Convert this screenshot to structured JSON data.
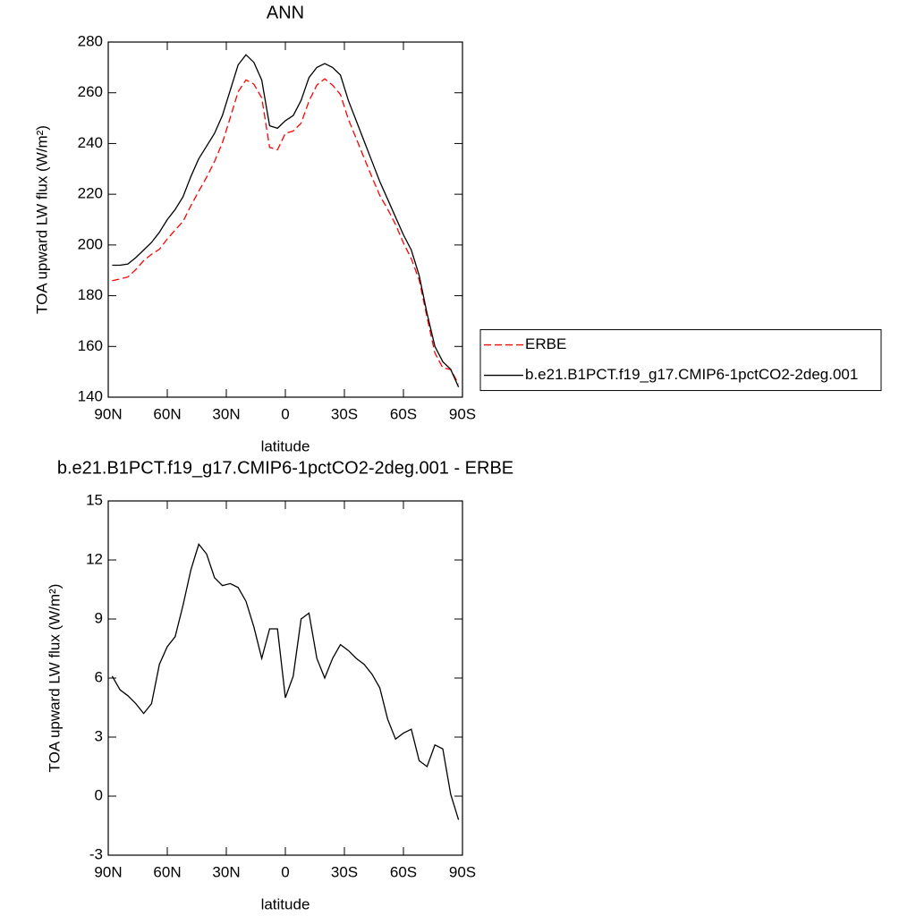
{
  "chart_data": [
    {
      "type": "line",
      "title": "ANN",
      "xlabel": "latitude",
      "ylabel": "TOA upward LW flux (W/m²)",
      "x": [
        88,
        84,
        80,
        76,
        72,
        68,
        64,
        60,
        56,
        52,
        48,
        44,
        40,
        36,
        32,
        28,
        24,
        20,
        16,
        12,
        8,
        4,
        0,
        -4,
        -8,
        -12,
        -16,
        -20,
        -24,
        -28,
        -32,
        -36,
        -40,
        -44,
        -48,
        -52,
        -56,
        -60,
        -64,
        -68,
        -72,
        -76,
        -80,
        -84,
        -88
      ],
      "series": [
        {
          "name": "ERBE",
          "color": "#ff0000",
          "dash": true,
          "values": [
            185.9,
            186.6,
            187.4,
            190.3,
            193.8,
            196.3,
            198.3,
            202.4,
            205.9,
            209.3,
            215.5,
            221.2,
            226.7,
            232.9,
            240.3,
            250.2,
            260.4,
            265.1,
            263.4,
            258.0,
            238.5,
            237.5,
            244.0,
            244.9,
            248.0,
            256.7,
            263.0,
            265.5,
            263.0,
            259.3,
            249.6,
            242.0,
            234.3,
            226.8,
            219.5,
            214.1,
            208.1,
            200.8,
            194.6,
            186.2,
            171.5,
            157.4,
            151.6,
            150.9,
            145.2
          ]
        },
        {
          "name": "b.e21.B1PCT.f19_g17.CMIP6-1pctCO2-2deg.001",
          "color": "#000000",
          "dash": false,
          "values": [
            192,
            192,
            192.5,
            195,
            198,
            201,
            205,
            210,
            214,
            219,
            227,
            234,
            239,
            244,
            251,
            261,
            271,
            275,
            272,
            265,
            247,
            246,
            249,
            251,
            257,
            266,
            270,
            271.5,
            270,
            267,
            257,
            249,
            241,
            233,
            225,
            218,
            211,
            204,
            198,
            188,
            173,
            160,
            154,
            151,
            144
          ]
        }
      ],
      "xlim": [
        90,
        -90
      ],
      "ylim": [
        140,
        280
      ],
      "xticks": [
        {
          "value": 90,
          "label": "90N"
        },
        {
          "value": 60,
          "label": "60N"
        },
        {
          "value": 30,
          "label": "30N"
        },
        0,
        {
          "value": -30,
          "label": "30S"
        },
        {
          "value": -60,
          "label": "60S"
        },
        {
          "value": -90,
          "label": "90S"
        }
      ],
      "yticks": [
        140,
        160,
        180,
        200,
        220,
        240,
        260,
        280
      ],
      "legend": "right"
    },
    {
      "type": "line",
      "title": "b.e21.B1PCT.f19_g17.CMIP6-1pctCO2-2deg.001 - ERBE",
      "xlabel": "latitude",
      "ylabel": "TOA upward LW flux (W/m²)",
      "x": [
        88,
        84,
        80,
        76,
        72,
        68,
        64,
        60,
        56,
        52,
        48,
        44,
        40,
        36,
        32,
        28,
        24,
        20,
        16,
        12,
        8,
        4,
        0,
        -4,
        -8,
        -12,
        -16,
        -20,
        -24,
        -28,
        -32,
        -36,
        -40,
        -44,
        -48,
        -52,
        -56,
        -60,
        -64,
        -68,
        -72,
        -76,
        -80,
        -84,
        -88
      ],
      "series": [
        {
          "color": "#000000",
          "dash": false,
          "values": [
            6.1,
            5.4,
            5.1,
            4.7,
            4.2,
            4.7,
            6.7,
            7.6,
            8.1,
            9.7,
            11.5,
            12.8,
            12.3,
            11.1,
            10.7,
            10.8,
            10.6,
            9.9,
            8.6,
            7.0,
            8.5,
            8.5,
            5.0,
            6.1,
            9.0,
            9.3,
            7.0,
            6.0,
            7.0,
            7.7,
            7.4,
            7.0,
            6.7,
            6.2,
            5.5,
            3.9,
            2.9,
            3.2,
            3.4,
            1.8,
            1.5,
            2.6,
            2.4,
            0.1,
            -1.2
          ]
        }
      ],
      "xlim": [
        90,
        -90
      ],
      "ylim": [
        -3,
        15
      ],
      "xticks": [
        {
          "value": 90,
          "label": "90N"
        },
        {
          "value": 60,
          "label": "60N"
        },
        {
          "value": 30,
          "label": "30N"
        },
        0,
        {
          "value": -30,
          "label": "30S"
        },
        {
          "value": -60,
          "label": "60S"
        },
        {
          "value": -90,
          "label": "90S"
        }
      ],
      "yticks": [
        -3,
        0,
        3,
        6,
        9,
        12,
        15
      ]
    }
  ]
}
